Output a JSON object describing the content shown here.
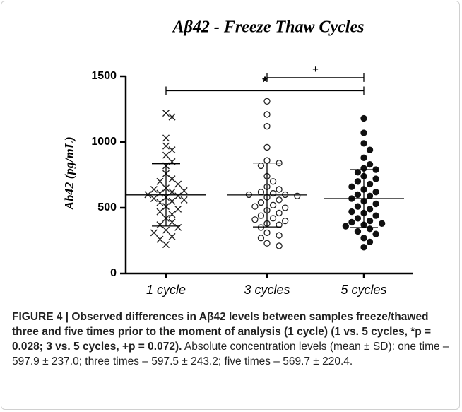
{
  "chart_data": {
    "type": "scatter",
    "title": "Aβ42 - Freeze Thaw Cycles",
    "y_label": "Ab42 (pg/mL)",
    "categories": [
      "1 cycle",
      "3 cycles",
      "5 cycles"
    ],
    "ylim": [
      0,
      1500
    ],
    "yticks": [
      0,
      500,
      1000,
      1500
    ],
    "series": [
      {
        "name": "1 cycle",
        "marker": "x",
        "color": "#222222",
        "mean": 597.9,
        "sd": 237.0,
        "values": [
          1220,
          1190,
          1030,
          970,
          940,
          900,
          850,
          820,
          760,
          720,
          700,
          680,
          650,
          640,
          630,
          620,
          610,
          600,
          590,
          580,
          570,
          560,
          550,
          540,
          510,
          490,
          470,
          450,
          420,
          390,
          370,
          350,
          330,
          310,
          280,
          260,
          220
        ]
      },
      {
        "name": "3 cycles",
        "marker": "open-circle",
        "color": "#222222",
        "mean": 597.5,
        "sd": 243.2,
        "values": [
          1310,
          1210,
          1120,
          960,
          860,
          840,
          820,
          740,
          700,
          660,
          640,
          620,
          610,
          600,
          600,
          590,
          580,
          560,
          540,
          520,
          510,
          500,
          480,
          460,
          440,
          420,
          410,
          400,
          380,
          370,
          350,
          310,
          290,
          270,
          230,
          210
        ]
      },
      {
        "name": "5 cycles",
        "marker": "filled-circle",
        "color": "#111111",
        "mean": 569.7,
        "sd": 220.4,
        "values": [
          1180,
          1070,
          990,
          940,
          880,
          830,
          800,
          790,
          770,
          740,
          720,
          700,
          680,
          660,
          640,
          620,
          600,
          590,
          570,
          550,
          530,
          510,
          490,
          470,
          460,
          440,
          420,
          400,
          390,
          380,
          370,
          360,
          340,
          320,
          300,
          270,
          240,
          200
        ]
      }
    ],
    "annotations": [
      {
        "from": 0,
        "to": 2,
        "y": 1390,
        "label": "*"
      },
      {
        "from": 1,
        "to": 2,
        "y": 1490,
        "label": "+"
      }
    ]
  },
  "caption": {
    "bold": "FIGURE 4 | Observed differences in Aβ42 levels between samples freeze/thawed three and five times prior to the moment of analysis (1 cycle) (1 vs. 5 cycles, *p = 0.028; 3 vs. 5 cycles, +p = 0.072).",
    "text": "Absolute concentration levels (mean ± SD): one time – 597.9 ± 237.0; three times – 597.5 ± 243.2; five times – 569.7 ± 220.4."
  }
}
